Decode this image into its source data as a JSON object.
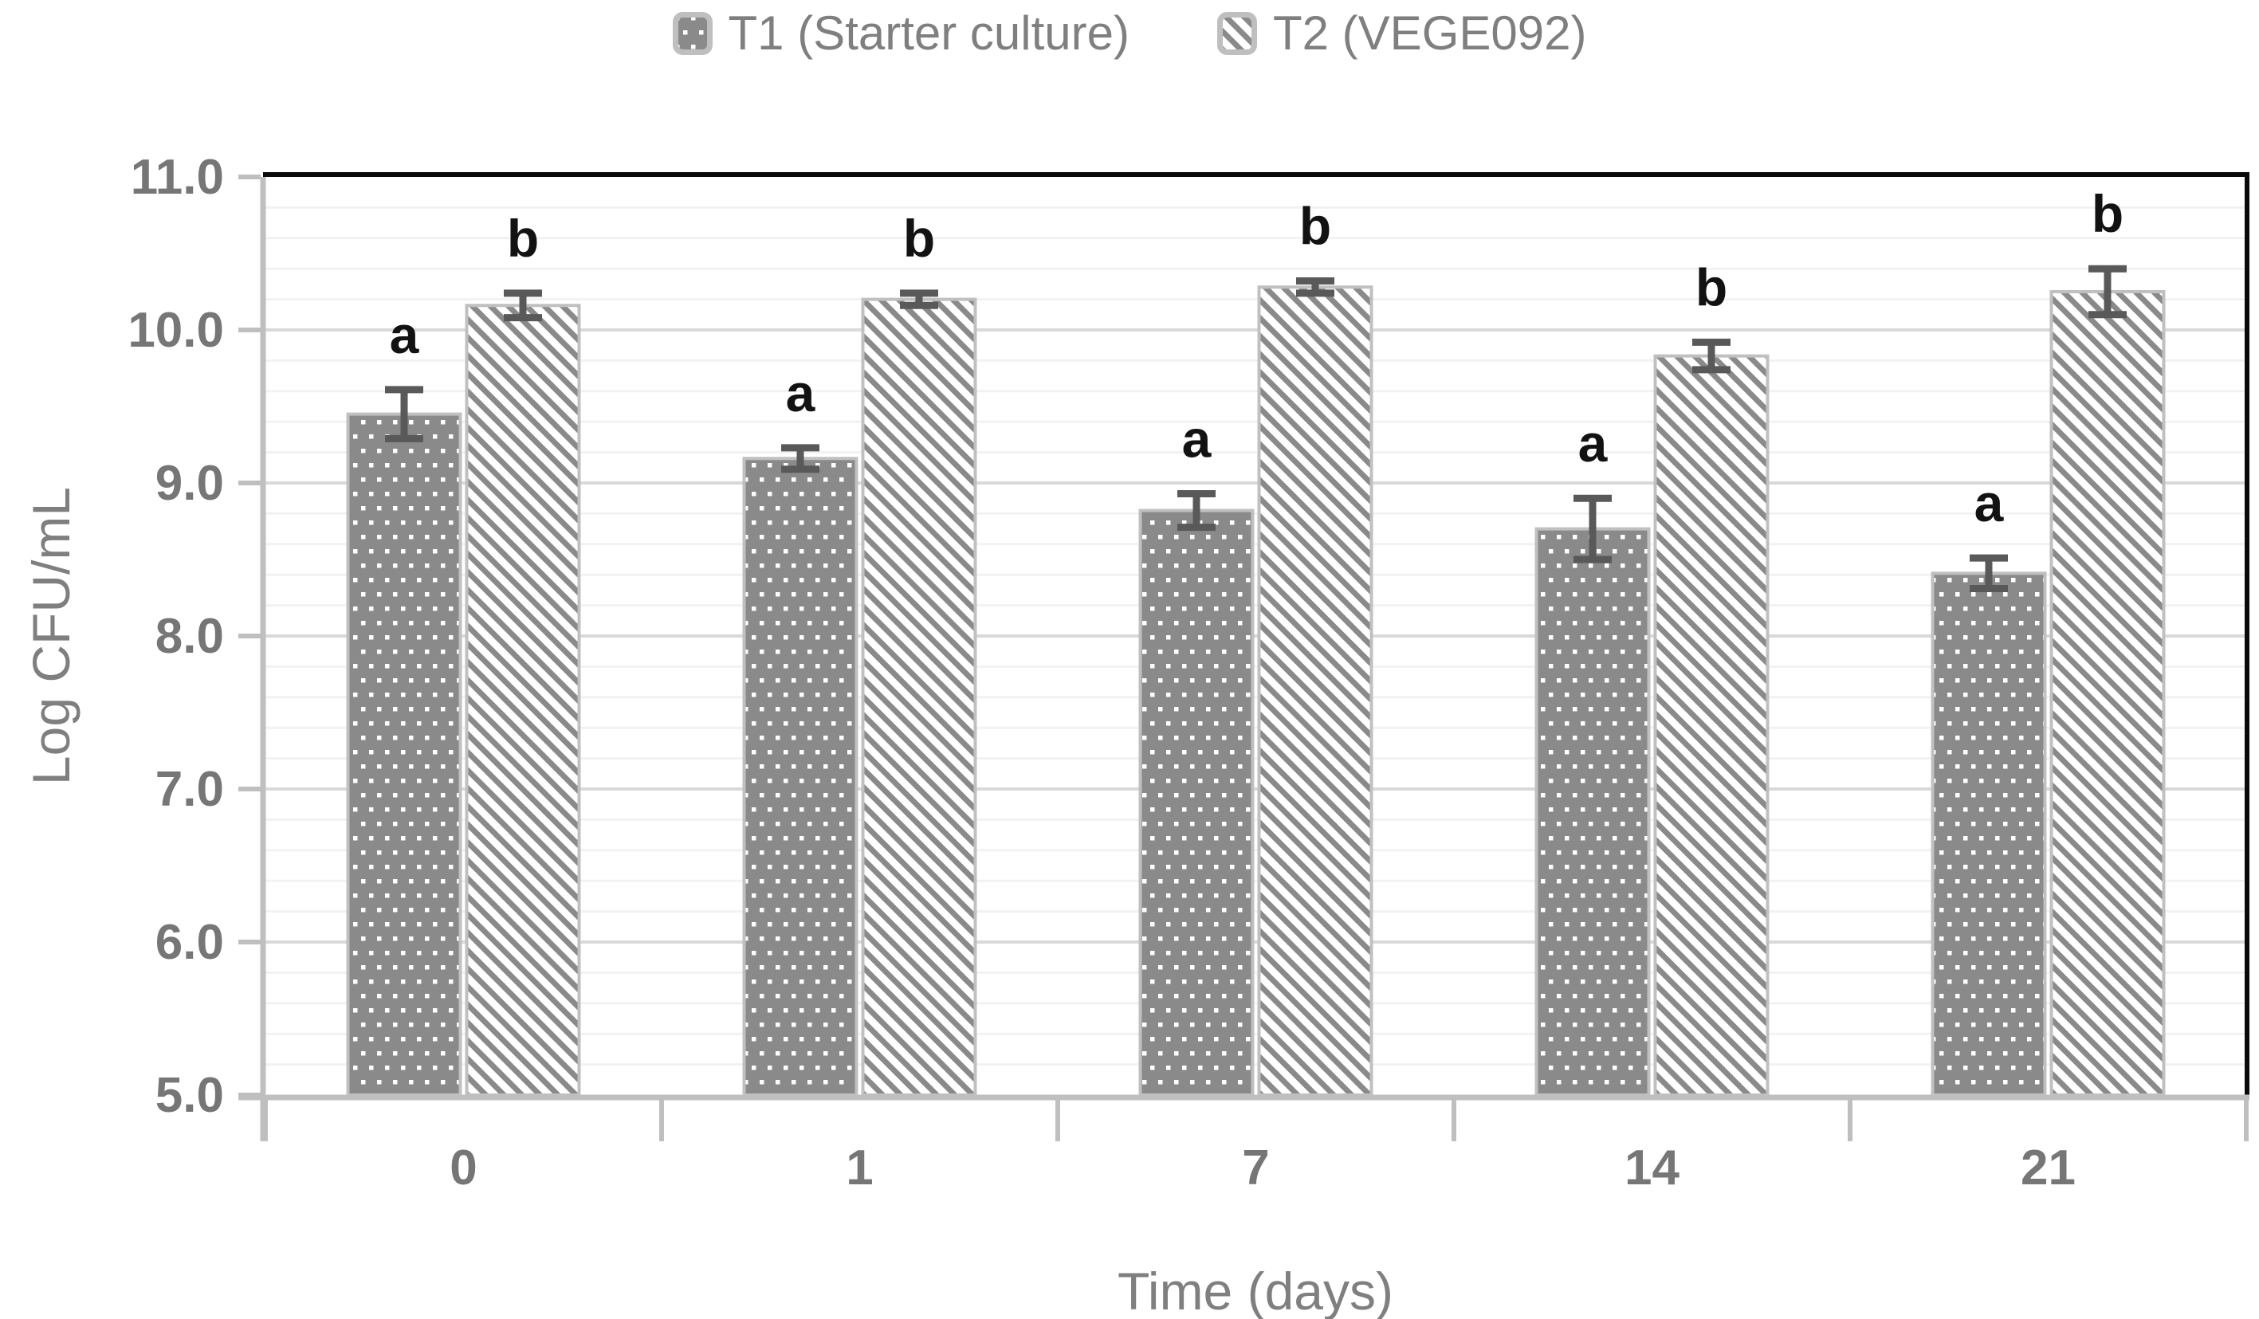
{
  "legend": {
    "items": [
      {
        "label": "T1 (Starter culture)",
        "pattern": "dots"
      },
      {
        "label": "T2 (VEGE092)",
        "pattern": "stripes"
      }
    ]
  },
  "chart_data": {
    "type": "bar",
    "title": "",
    "categories": [
      "0",
      "1",
      "7",
      "14",
      "21"
    ],
    "series": [
      {
        "name": "T1 (Starter culture)",
        "pattern": "dots",
        "values": [
          9.45,
          9.16,
          8.82,
          8.7,
          8.41
        ],
        "errors": [
          0.16,
          0.07,
          0.11,
          0.2,
          0.1
        ],
        "letters": [
          "a",
          "a",
          "a",
          "a",
          "a"
        ]
      },
      {
        "name": "T2 (VEGE092)",
        "pattern": "stripes",
        "values": [
          10.16,
          10.2,
          10.28,
          9.83,
          10.25
        ],
        "errors": [
          0.08,
          0.04,
          0.04,
          0.09,
          0.15
        ],
        "letters": [
          "b",
          "b",
          "b",
          "b",
          "b"
        ]
      }
    ],
    "xlabel": "Time (days)",
    "ylabel": "Log CFU/mL",
    "ylim": [
      5.0,
      11.0
    ],
    "ytick_step": 1.0,
    "minor_step": 0.2,
    "yticks": [
      "5.0",
      "6.0",
      "7.0",
      "8.0",
      "9.0",
      "10.0",
      "11.0"
    ],
    "grid": "major+minor",
    "legend_position": "top"
  },
  "colors": {
    "pattern_gray": "#8a8a8a",
    "pattern_white": "#ffffff",
    "bar_border": "#c0c0c0",
    "axis_line": "#bfbfbf",
    "grid_major": "#d9d9d9",
    "grid_minor": "#f2f2f2",
    "error_bar": "#595959",
    "tick_label": "#767676",
    "axis_title": "#7f7f7f",
    "letter_color": "#121212",
    "plot_border_dark": "#0a0a0a",
    "background": "#ffffff"
  }
}
